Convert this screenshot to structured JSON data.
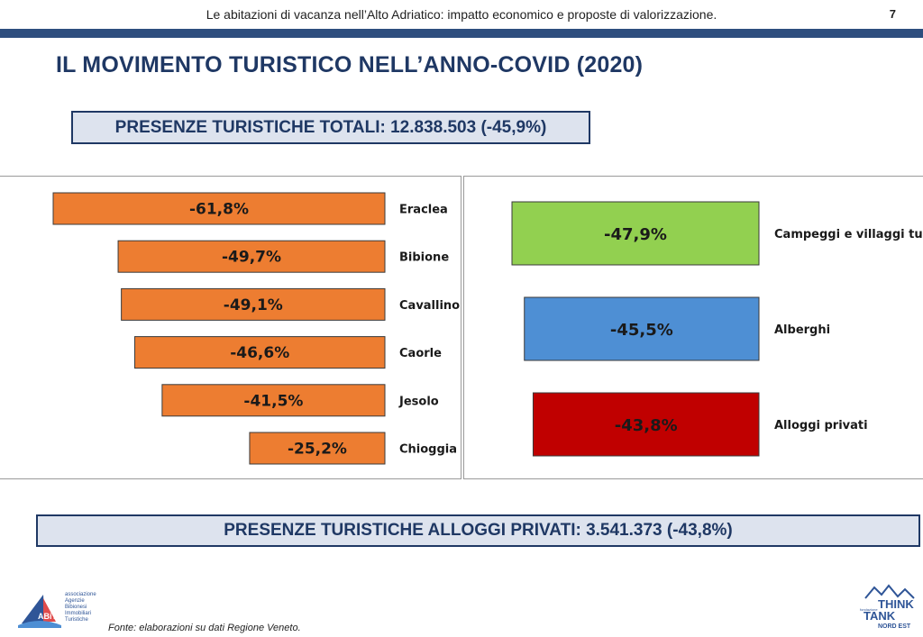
{
  "header": {
    "text": "Le abitazioni di vacanza nell’Alto Adriatico: impatto economico e proposte di valorizzazione.",
    "page_number": "7",
    "rule_color": "#2e4e7e"
  },
  "title": "IL MOVIMENTO TURISTICO NELL’ANNO-COVID (2020)",
  "summary_top": "PRESENZE TURISTICHE TOTALI: 12.838.503 (-45,9%)",
  "summary_bottom": "PRESENZE TURISTICHE ALLOGGI PRIVATI: 3.541.373 (-43,8%)",
  "chart_data": [
    {
      "type": "bar",
      "orientation": "horizontal",
      "categories": [
        "Eraclea",
        "Bibione",
        "Cavallino",
        "Caorle",
        "Jesolo",
        "Chioggia"
      ],
      "values": [
        -61.8,
        -49.7,
        -49.1,
        -46.6,
        -41.5,
        -25.2
      ],
      "labels": [
        "-61,8%",
        "-49,7%",
        "-49,1%",
        "-46,6%",
        "-41,5%",
        "-25,2%"
      ],
      "colors": [
        "#ed7d31",
        "#ed7d31",
        "#ed7d31",
        "#ed7d31",
        "#ed7d31",
        "#ed7d31"
      ]
    },
    {
      "type": "bar",
      "orientation": "horizontal",
      "categories": [
        "Campeggi e villaggi tur.",
        "Alberghi",
        "Alloggi privati"
      ],
      "values": [
        -47.9,
        -45.5,
        -43.8
      ],
      "labels": [
        "-47,9%",
        "-45,5%",
        "-43,8%"
      ],
      "colors": [
        "#92d050",
        "#4e8fd4",
        "#c00000"
      ]
    }
  ],
  "footnote": "Fonte: elaborazioni su dati Regione Veneto.",
  "logo_left": {
    "mark": "ABiT",
    "lines": [
      "associazione",
      "Agenzie",
      "Bibionesi",
      "Immobiliari",
      "Turistiche"
    ]
  },
  "logo_right": {
    "line1": "THINK",
    "line2": "TANK",
    "line3": "NORD EST",
    "small": "fondazione"
  }
}
